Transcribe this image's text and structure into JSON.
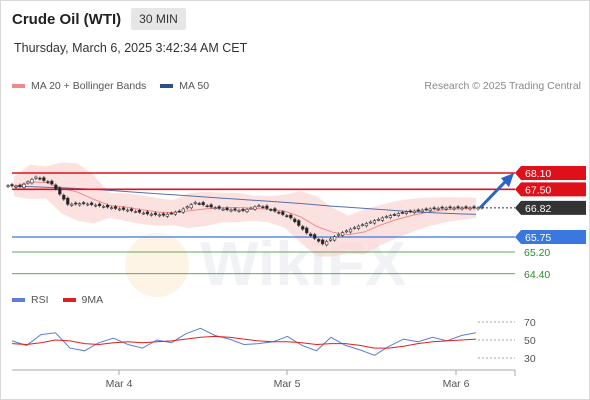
{
  "header": {
    "title": "Crude Oil (WTI)",
    "interval": "30 MIN",
    "timestamp": "Thursday, March 6, 2025 3:42:34 AM CET"
  },
  "legend": {
    "items": [
      {
        "label": "MA 20 + Bollinger Bands",
        "color": "#f08a8a"
      },
      {
        "label": "MA 50",
        "color": "#2d4f8c"
      }
    ],
    "credit": "Research © 2025 Trading Central"
  },
  "rsi_legend": {
    "items": [
      {
        "label": "RSI",
        "color": "#5b7fd6"
      },
      {
        "label": "9MA",
        "color": "#e02020"
      }
    ]
  },
  "colors": {
    "resistance": "#e0101b",
    "support": "#3a78e0",
    "target": "#2e8b2e",
    "current": "#333333",
    "candle_up": "#666666",
    "candle_down": "#222222",
    "bollinger_fill": "#fbd7d7",
    "ma50": "#5570a8",
    "arrow": "#2b63c6"
  },
  "chart_data": [
    {
      "type": "candlestick",
      "title": "Crude Oil (WTI)",
      "x": {
        "ticks": [
          "Mar 4",
          "Mar 5",
          "Mar 6"
        ]
      },
      "ylim": [
        64.2,
        68.6
      ],
      "series": [
        {
          "name": "MA 20 + Bollinger Bands",
          "kind": "band"
        },
        {
          "name": "MA 50",
          "kind": "line",
          "values": [
            67.62,
            67.6,
            67.58,
            67.56,
            67.53,
            67.5,
            67.46,
            67.42,
            67.38,
            67.34,
            67.3,
            67.26,
            67.22,
            67.18,
            67.14,
            67.1,
            67.06,
            67.02,
            66.98,
            66.93,
            66.88,
            66.84,
            66.8,
            66.76,
            66.72,
            66.68,
            66.65,
            66.62,
            66.6,
            66.58
          ]
        },
        {
          "name": "Price",
          "kind": "candles",
          "close": [
            67.6,
            67.95,
            67.7,
            66.95,
            66.98,
            66.9,
            66.8,
            66.72,
            66.6,
            66.55,
            66.7,
            67.02,
            66.85,
            66.75,
            66.72,
            66.9,
            66.7,
            66.45,
            65.9,
            65.5,
            65.85,
            66.1,
            66.3,
            66.5,
            66.65,
            66.72,
            66.8,
            66.82,
            66.82,
            66.82
          ]
        }
      ],
      "levels": [
        {
          "label": "68.10",
          "value": 68.1,
          "kind": "resistance"
        },
        {
          "label": "67.50",
          "value": 67.5,
          "kind": "resistance"
        },
        {
          "label": "66.82",
          "value": 66.82,
          "kind": "current"
        },
        {
          "label": "65.75",
          "value": 65.75,
          "kind": "support"
        },
        {
          "label": "65.20",
          "value": 65.2,
          "kind": "target"
        },
        {
          "label": "64.40",
          "value": 64.4,
          "kind": "target"
        }
      ]
    },
    {
      "type": "line",
      "title": "RSI",
      "ylim": [
        20,
        80
      ],
      "y_ticks": [
        "70",
        "50",
        "30"
      ],
      "series": [
        {
          "name": "RSI",
          "values": [
            49,
            44,
            56,
            58,
            41,
            38,
            47,
            52,
            45,
            41,
            50,
            47,
            57,
            63,
            55,
            51,
            45,
            46,
            48,
            54,
            44,
            38,
            53,
            44,
            39,
            33,
            43,
            51,
            48,
            53,
            49,
            55,
            58
          ]
        },
        {
          "name": "9MA",
          "values": [
            46,
            45,
            47,
            50,
            49,
            46,
            45,
            47,
            48,
            47,
            48,
            49,
            51,
            53,
            54,
            53,
            51,
            49,
            48,
            48,
            47,
            45,
            46,
            46,
            44,
            41,
            41,
            43,
            46,
            48,
            49,
            50,
            51
          ]
        }
      ]
    }
  ]
}
